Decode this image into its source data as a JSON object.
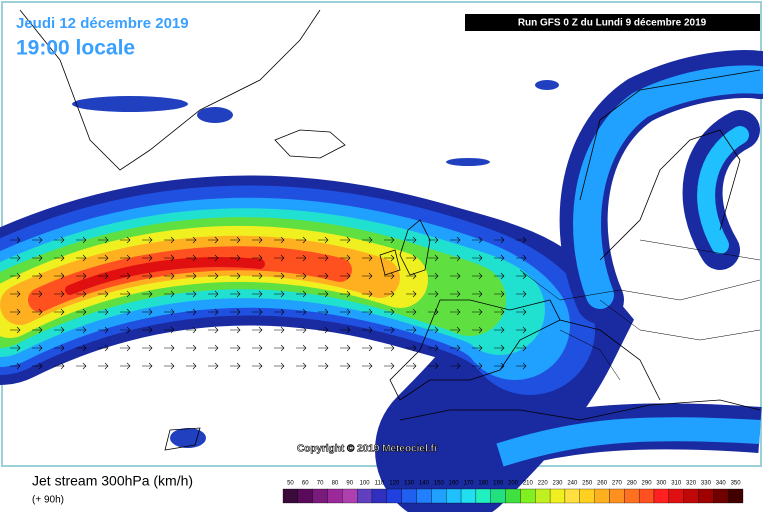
{
  "header": {
    "date": "Jeudi 12 décembre 2019",
    "time": "19:00 locale",
    "run": "Run GFS 0 Z du Lundi 9 décembre 2019"
  },
  "copyright": "Copyright © 2019 Meteociel.fr",
  "footer": {
    "title": "Jet stream 300hPa (km/h)",
    "lead": "(+ 90h)"
  },
  "legend": {
    "labels": [
      50,
      60,
      70,
      80,
      90,
      100,
      110,
      120,
      130,
      140,
      150,
      160,
      170,
      180,
      190,
      200,
      210,
      220,
      230,
      240,
      250,
      260,
      270,
      280,
      290,
      300,
      310,
      320,
      330,
      340,
      350
    ],
    "colors": [
      "#3a0a3a",
      "#5a0a5a",
      "#7a1a7a",
      "#9a2a9a",
      "#b040b0",
      "#6040c0",
      "#3030c0",
      "#2040e0",
      "#2060f0",
      "#2080ff",
      "#20a0ff",
      "#20c0ff",
      "#20e0f0",
      "#20f0c0",
      "#20e080",
      "#40e040",
      "#80f020",
      "#c0f020",
      "#f0f020",
      "#ffe040",
      "#ffd020",
      "#ffb020",
      "#ff9020",
      "#ff7020",
      "#ff5020",
      "#ff2020",
      "#e01010",
      "#c00808",
      "#a00000",
      "#700000",
      "#400000"
    ]
  }
}
